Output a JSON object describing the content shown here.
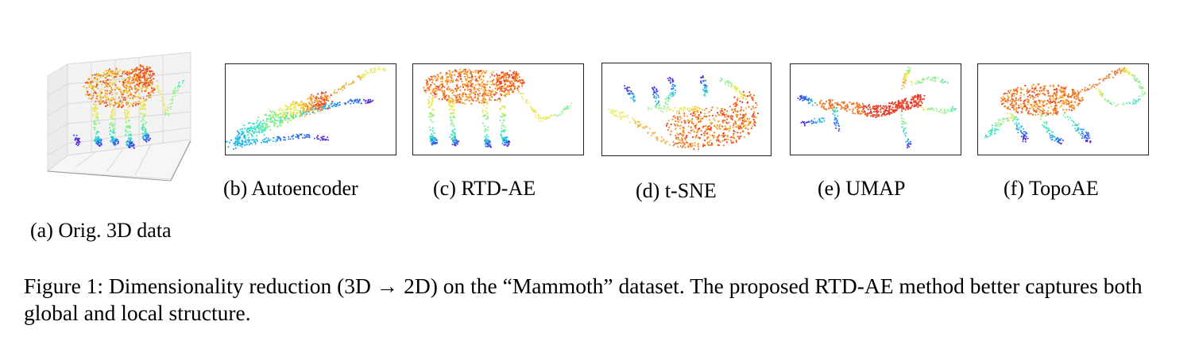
{
  "figure": {
    "panels": [
      {
        "id": "a",
        "label": "(a) Orig. 3D data",
        "icon": "mammoth-3d-scatter-icon"
      },
      {
        "id": "b",
        "label": "(b) Autoencoder",
        "icon": "autoencoder-embedding-icon"
      },
      {
        "id": "c",
        "label": "(c) RTD-AE",
        "icon": "rtd-ae-embedding-icon"
      },
      {
        "id": "d",
        "label": "(d) t-SNE",
        "icon": "tsne-embedding-icon"
      },
      {
        "id": "e",
        "label": "(e) UMAP",
        "icon": "umap-embedding-icon"
      },
      {
        "id": "f",
        "label": "(f) TopoAE",
        "icon": "topoae-embedding-icon"
      }
    ],
    "colormap": [
      "#5b2bd6",
      "#2f6cf0",
      "#2bb5e8",
      "#3fe3c0",
      "#8ff08a",
      "#e8e850",
      "#f6b23a",
      "#f07a2a",
      "#e8402a"
    ],
    "caption": "Figure 1: Dimensionality reduction (3D → 2D) on the “Mammoth” dataset. The proposed RTD-AE method better captures both global and local structure."
  }
}
